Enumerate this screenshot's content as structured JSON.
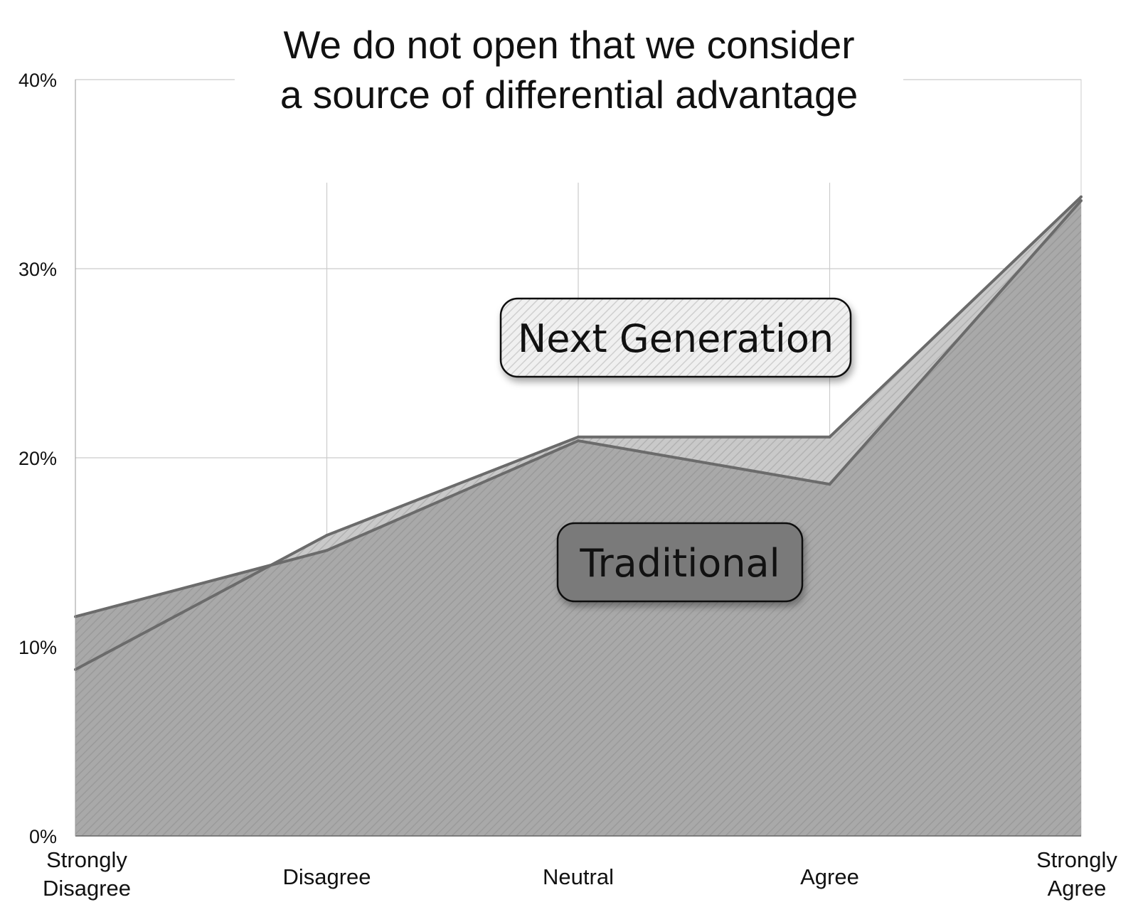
{
  "chart_data": {
    "type": "area",
    "title_lines": [
      "We do not open that we consider",
      "a source of differential advantage"
    ],
    "categories": [
      [
        "Strongly",
        "Disagree"
      ],
      [
        "Disagree"
      ],
      [
        "Neutral"
      ],
      [
        "Agree"
      ],
      [
        "Strongly",
        "Agree"
      ]
    ],
    "series": [
      {
        "name": "Next Generation",
        "values": [
          8.8,
          15.9,
          21.1,
          21.1,
          33.8
        ]
      },
      {
        "name": "Traditional",
        "values": [
          11.6,
          15.1,
          20.9,
          18.6,
          33.6
        ]
      }
    ],
    "ylim": [
      0,
      40
    ],
    "yticks": [
      "0%",
      "10%",
      "20%",
      "30%",
      "40%"
    ],
    "grid": true,
    "legend_placement": "inline-center",
    "colors": {
      "traditional_fill": "#a9a9a9",
      "traditional_line": "#6b6b6b",
      "next_gen_fill": "#e8e8e8",
      "next_gen_line": "#6b6b6b",
      "grid": "#cccccc",
      "legend_traditional_bg": "#7a7a7a",
      "legend_next_gen_bg": "#ededed"
    }
  }
}
